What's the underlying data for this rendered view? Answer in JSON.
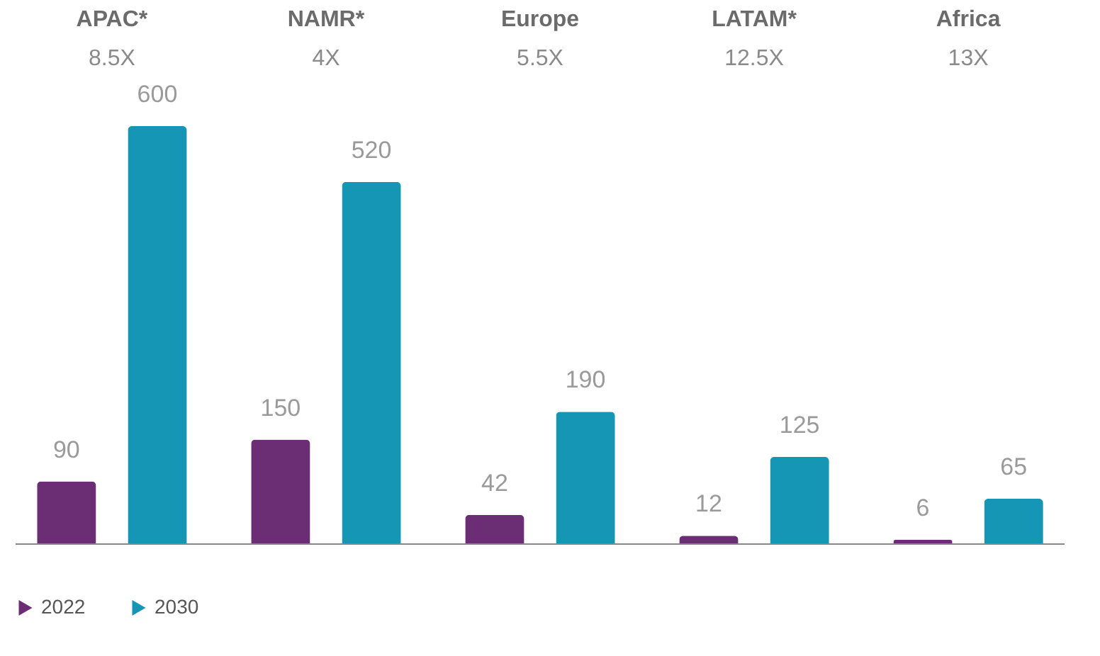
{
  "chart_data": {
    "type": "bar",
    "categories": [
      "APAC*",
      "NAMR*",
      "Europe",
      "LATAM*",
      "Africa"
    ],
    "series": [
      {
        "name": "2022",
        "color": "#6b2d73",
        "values": [
          90,
          150,
          42,
          12,
          6
        ]
      },
      {
        "name": "2030",
        "color": "#1596b5",
        "values": [
          600,
          520,
          190,
          125,
          65
        ]
      }
    ],
    "data_labels": true,
    "legend": "bottom",
    "annotations": [
      "8.5X",
      "4X",
      "5.5X",
      "12.5X",
      "13X"
    ]
  }
}
